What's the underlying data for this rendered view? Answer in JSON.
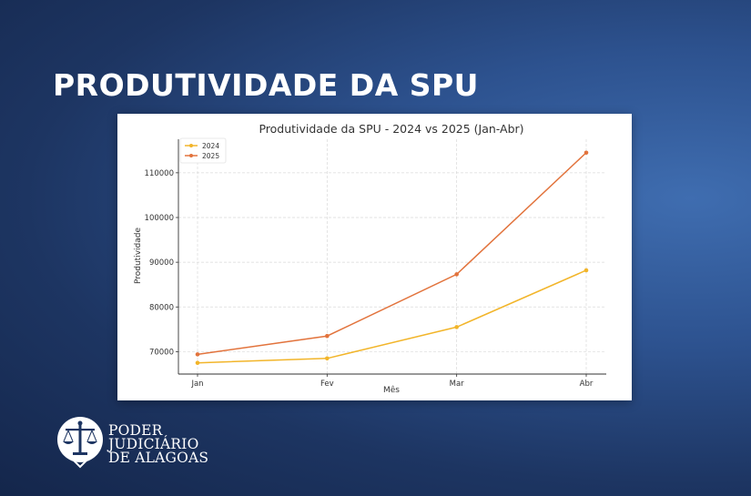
{
  "page": {
    "headline": "PRODUTIVIDADE DA SPU"
  },
  "logo": {
    "icon": "scales-of-justice-emblem",
    "lines": [
      "PODER",
      "JUDICIÁRIO",
      "DE ALAGOAS"
    ]
  },
  "colors": {
    "series_2024": "#f2b52a",
    "series_2025": "#e2733c",
    "headline": "#ffffff",
    "background_dark": "#14264b",
    "background_light": "#3f6db0"
  },
  "chart_data": {
    "type": "line",
    "title": "Produtividade da SPU - 2024 vs 2025 (Jan-Abr)",
    "xlabel": "Mês",
    "ylabel": "Produtividade",
    "categories": [
      "Jan",
      "Fev",
      "Mar",
      "Abr"
    ],
    "series": [
      {
        "name": "2024",
        "color": "#f2b52a",
        "values": [
          67500,
          68500,
          75500,
          88200
        ]
      },
      {
        "name": "2025",
        "color": "#e2733c",
        "values": [
          69400,
          73500,
          87300,
          114500
        ]
      }
    ],
    "ylim": [
      65000,
      117500
    ],
    "yticks": [
      70000,
      80000,
      90000,
      100000,
      110000
    ],
    "grid": true,
    "legend": "top-left"
  }
}
